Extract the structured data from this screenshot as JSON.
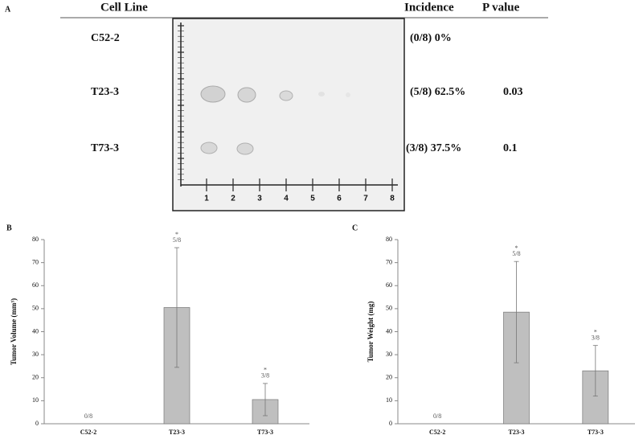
{
  "panel_a": {
    "label": "A",
    "headers": [
      "Cell Line",
      "Incidence",
      "P value"
    ],
    "rows": [
      {
        "cell_line": "C52-2",
        "incidence": "(0/8) 0%"
      },
      {
        "cell_line": "T23-3",
        "incidence": "(5/8) 62.5%",
        "p_value": "0.03"
      },
      {
        "cell_line": "T73-3",
        "incidence": "(3/8) 37.5%",
        "p_value": "0.1"
      }
    ],
    "ruler_labels": [
      1,
      2,
      3,
      4,
      5,
      6,
      7,
      8
    ]
  },
  "chart_data": [
    {
      "type": "bar",
      "panel_label": "B",
      "y_label": "Tumor Volume (mm³)",
      "categories": [
        "C52-2",
        "T23-3",
        "T73-3"
      ],
      "values": [
        0,
        50.5,
        10.5
      ],
      "errors": [
        null,
        26,
        7
      ],
      "count_labels": [
        "0/8",
        "5/8",
        "3/8"
      ],
      "significance": [
        null,
        "*",
        "*"
      ],
      "color": "#bfbfbf",
      "ylim": [
        0,
        80
      ],
      "yticks": [
        0,
        10,
        20,
        30,
        40,
        50,
        60,
        70,
        80
      ]
    },
    {
      "type": "bar",
      "panel_label": "C",
      "y_label": "Tumor Weight (mg)",
      "categories": [
        "C52-2",
        "T23-3",
        "T73-3"
      ],
      "values": [
        0,
        48.5,
        23
      ],
      "errors": [
        null,
        22,
        11
      ],
      "count_labels": [
        "0/8",
        "5/8",
        "3/8"
      ],
      "significance": [
        null,
        "*",
        "*"
      ],
      "color": "#bfbfbf",
      "ylim": [
        0,
        80
      ],
      "yticks": [
        0,
        10,
        20,
        30,
        40,
        50,
        60,
        70,
        80
      ]
    }
  ]
}
